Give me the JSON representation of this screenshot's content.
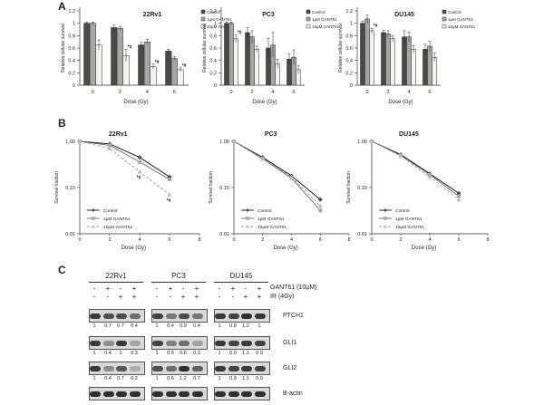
{
  "panels": {
    "a": "A",
    "b": "B",
    "c": "C"
  },
  "chart_data": [
    {
      "type": "bar",
      "panel": "A",
      "title": "22Rv1",
      "xlabel": "Dose (Gy)",
      "ylabel": "Relative cellular survival",
      "categories": [
        "0",
        "2",
        "4",
        "6"
      ],
      "ylim": [
        0,
        1.2
      ],
      "yticks": [
        "0",
        "0.2",
        "0.4",
        "0.6",
        "0.8",
        "1",
        "1.2"
      ],
      "legend": [
        "Control",
        "1µM GANT61",
        "10µM GANT61"
      ],
      "series": [
        {
          "name": "Control",
          "values": [
            1.0,
            0.93,
            0.65,
            0.55
          ]
        },
        {
          "name": "1µM GANT61",
          "values": [
            1.0,
            0.92,
            0.7,
            0.43
          ]
        },
        {
          "name": "10µM GANT61",
          "values": [
            0.65,
            0.48,
            0.3,
            0.25
          ]
        }
      ],
      "errors": [
        [
          0.02,
          0.04,
          0.04,
          0.03
        ],
        [
          0.02,
          0.03,
          0.04,
          0.03
        ],
        [
          0.08,
          0.1,
          0.04,
          0.03
        ]
      ],
      "annotations": [
        {
          "category": "2",
          "series": 2,
          "text": "*#"
        },
        {
          "category": "4",
          "series": 2,
          "text": "*#"
        },
        {
          "category": "6",
          "series": 2,
          "text": "*#"
        }
      ]
    },
    {
      "type": "bar",
      "panel": "A",
      "title": "PC3",
      "xlabel": "Dose (Gy)",
      "ylabel": "Relative cellular survival",
      "categories": [
        "0",
        "2",
        "4",
        "6"
      ],
      "ylim": [
        0,
        1.2
      ],
      "yticks": [
        "0",
        "0.2",
        "0.4",
        "0.6",
        "0.8",
        "1",
        "1.2"
      ],
      "legend": [
        "Control",
        "1µM GANT61",
        "10µM GANT61"
      ],
      "series": [
        {
          "name": "Control",
          "values": [
            1.0,
            0.85,
            0.6,
            0.42
          ]
        },
        {
          "name": "1µM GANT61",
          "values": [
            1.0,
            0.78,
            0.65,
            0.45
          ]
        },
        {
          "name": "10µM GANT61",
          "values": [
            0.75,
            0.58,
            0.35,
            0.25
          ]
        }
      ],
      "errors": [
        [
          0.02,
          0.08,
          0.15,
          0.08
        ],
        [
          0.02,
          0.1,
          0.2,
          0.12
        ],
        [
          0.06,
          0.05,
          0.07,
          0.07
        ]
      ],
      "annotations": [
        {
          "category": "0",
          "series": 2,
          "text": "*#"
        }
      ]
    },
    {
      "type": "bar",
      "panel": "A",
      "title": "DU145",
      "xlabel": "Dose (Gy)",
      "ylabel": "Relative cellular survival",
      "categories": [
        "0",
        "2",
        "4",
        "6"
      ],
      "ylim": [
        0,
        1.2
      ],
      "yticks": [
        "0",
        "0.2",
        "0.4",
        "0.6",
        "0.8",
        "1",
        "1.2"
      ],
      "legend": [
        "Control",
        "1µM GANT61",
        "10µM GANT61"
      ],
      "series": [
        {
          "name": "Control",
          "values": [
            1.0,
            0.85,
            0.78,
            0.58
          ]
        },
        {
          "name": "1µM GANT61",
          "values": [
            1.07,
            0.83,
            0.78,
            0.63
          ]
        },
        {
          "name": "10µM GANT61",
          "values": [
            0.88,
            0.75,
            0.58,
            0.45
          ]
        }
      ],
      "errors": [
        [
          0.03,
          0.04,
          0.1,
          0.08
        ],
        [
          0.06,
          0.05,
          0.08,
          0.08
        ],
        [
          0.04,
          0.05,
          0.06,
          0.07
        ]
      ],
      "annotations": [
        {
          "category": "0",
          "series": 2,
          "text": "*#"
        }
      ]
    },
    {
      "type": "line",
      "panel": "B",
      "title": "22Rv1",
      "xlabel": "Dose (Gy)",
      "ylabel": "Survival fraction",
      "scale_y": "log",
      "x": [
        0,
        2,
        4,
        6
      ],
      "xlim": [
        0,
        8
      ],
      "xticks": [
        "0",
        "2",
        "4",
        "6",
        "8"
      ],
      "ylim": [
        0.01,
        1.0
      ],
      "yticks": [
        "0.01",
        "0.10",
        "1.00"
      ],
      "legend": [
        "Control",
        "1µM GANT61",
        "10µM GANT61"
      ],
      "series": [
        {
          "name": "Control",
          "values": [
            1.0,
            0.88,
            0.45,
            0.17
          ]
        },
        {
          "name": "1µM GANT61",
          "values": [
            1.0,
            0.82,
            0.36,
            0.15
          ]
        },
        {
          "name": "10µM GANT61",
          "values": [
            1.0,
            0.7,
            0.22,
            0.07
          ]
        }
      ],
      "annotations": [
        {
          "x": 4,
          "text": "*#"
        },
        {
          "x": 6,
          "text": "*#"
        }
      ]
    },
    {
      "type": "line",
      "panel": "B",
      "title": "PC3",
      "xlabel": "Dose (Gy)",
      "ylabel": "Survival fraction",
      "scale_y": "log",
      "x": [
        0,
        2,
        4,
        6
      ],
      "xlim": [
        0,
        8
      ],
      "xticks": [
        "0",
        "2",
        "4",
        "6",
        "8"
      ],
      "ylim": [
        0.01,
        1.0
      ],
      "yticks": [
        "0.01",
        "0.10",
        "1.00"
      ],
      "legend": [
        "Control",
        "1µM GANT61",
        "10µM GANT61"
      ],
      "series": [
        {
          "name": "Control",
          "values": [
            1.0,
            0.45,
            0.18,
            0.055
          ]
        },
        {
          "name": "1µM GANT61",
          "values": [
            1.0,
            0.42,
            0.16,
            0.032
          ]
        },
        {
          "name": "10µM GANT61",
          "values": [
            1.0,
            0.43,
            0.17,
            0.04
          ]
        }
      ]
    },
    {
      "type": "line",
      "panel": "B",
      "title": "DU145",
      "xlabel": "Dose (Gy)",
      "ylabel": "Survival fraction",
      "scale_y": "log",
      "x": [
        0,
        2,
        4,
        6
      ],
      "xlim": [
        0,
        8
      ],
      "xticks": [
        "0",
        "2",
        "4",
        "6",
        "8"
      ],
      "ylim": [
        0.01,
        1.0
      ],
      "yticks": [
        "0.01",
        "0.10",
        "1.00"
      ],
      "legend": [
        "Control",
        "1µM GANT61",
        "10µM GANT61"
      ],
      "series": [
        {
          "name": "Control",
          "values": [
            1.0,
            0.52,
            0.2,
            0.075
          ]
        },
        {
          "name": "1µM GANT61",
          "values": [
            1.0,
            0.5,
            0.19,
            0.065
          ]
        },
        {
          "name": "10µM GANT61",
          "values": [
            1.0,
            0.48,
            0.17,
            0.055
          ]
        }
      ]
    }
  ],
  "western_blot": {
    "cell_lines": [
      "22Rv1",
      "PC3",
      "DU145"
    ],
    "treatment_labels": [
      "GANT61 (10µM)",
      "IR (4Gy)"
    ],
    "gant61_row": [
      "-",
      "+",
      "-",
      "+",
      "-",
      "+",
      "-",
      "+",
      "-",
      "+",
      "-",
      "+"
    ],
    "ir_row": [
      "-",
      "-",
      "+",
      "+",
      "-",
      "-",
      "+",
      "+",
      "-",
      "-",
      "+",
      "+"
    ],
    "proteins": [
      {
        "name": "PTCH1",
        "quant": [
          "1",
          "0.7",
          "0.7",
          "0.4",
          "1",
          "0.4",
          "0.9",
          "0.4",
          "1",
          "0.8",
          "1.2",
          "1"
        ],
        "intensity": [
          0.85,
          0.75,
          0.75,
          0.6,
          0.8,
          0.55,
          0.75,
          0.55,
          0.85,
          0.8,
          0.9,
          0.85
        ]
      },
      {
        "name": "GLI1",
        "quant": [
          "1",
          "0.4",
          "1",
          "0.3",
          "1",
          "0.5",
          "0.6",
          "0.3",
          "1",
          "0.9",
          "1.1",
          "0.9"
        ],
        "intensity": [
          0.85,
          0.45,
          0.85,
          0.35,
          0.8,
          0.5,
          0.6,
          0.35,
          0.85,
          0.8,
          0.85,
          0.8
        ]
      },
      {
        "name": "GLI2",
        "quant": [
          "1",
          "0.4",
          "0.7",
          "0.2",
          "1",
          "0.6",
          "1.2",
          "0.7",
          "1",
          "0.9",
          "1.1",
          "0.9"
        ],
        "intensity": [
          0.85,
          0.45,
          0.7,
          0.3,
          0.75,
          0.6,
          0.9,
          0.65,
          0.85,
          0.8,
          0.85,
          0.8
        ]
      },
      {
        "name": "B-actin",
        "quant": [],
        "intensity": [
          0.9,
          0.9,
          0.9,
          0.9,
          0.9,
          0.9,
          0.9,
          0.9,
          0.9,
          0.9,
          0.9,
          0.9
        ]
      }
    ]
  },
  "colors": {
    "control": "#4a4a4a",
    "gant1": "#a6a6a6",
    "gant10": "#f4f4ee",
    "axis": "#333333"
  }
}
